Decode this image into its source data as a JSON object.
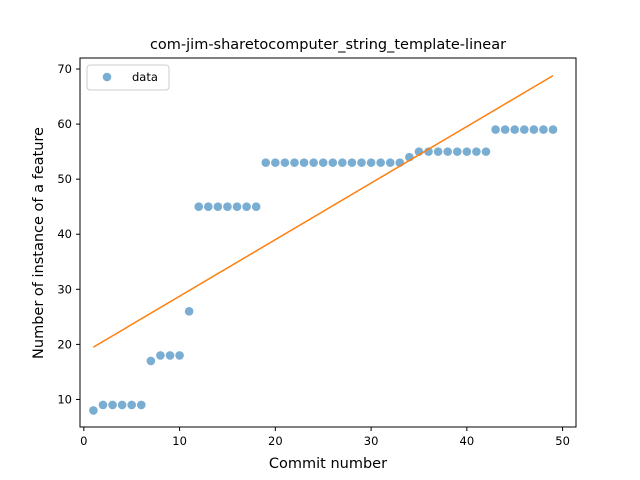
{
  "chart_data": {
    "type": "scatter",
    "title": "com-jim-sharetocomputer_string_template-linear",
    "xlabel": "Commit number",
    "ylabel": "Number of instance of a feature",
    "xlim": [
      -0.4,
      51.4
    ],
    "ylim": [
      5.0,
      72.0
    ],
    "xticks": [
      "0",
      "10",
      "20",
      "30",
      "40",
      "50"
    ],
    "yticks": [
      "10",
      "20",
      "30",
      "40",
      "50",
      "60",
      "70"
    ],
    "grid": false,
    "legend": {
      "placement": "top-left",
      "entries": [
        "data"
      ]
    },
    "colors": {
      "data": "#1f77b4",
      "fit": "#ff7f0e"
    },
    "series": [
      {
        "name": "data",
        "kind": "scatter",
        "x": [
          1,
          2,
          3,
          4,
          5,
          6,
          7,
          8,
          9,
          10,
          11,
          12,
          13,
          14,
          15,
          16,
          17,
          18,
          19,
          20,
          21,
          22,
          23,
          24,
          25,
          26,
          27,
          28,
          29,
          30,
          31,
          32,
          33,
          34,
          35,
          36,
          37,
          38,
          39,
          40,
          41,
          42,
          43,
          44,
          45,
          46,
          47,
          48,
          49
        ],
        "y": [
          8,
          9,
          9,
          9,
          9,
          9,
          17,
          18,
          18,
          18,
          26,
          45,
          45,
          45,
          45,
          45,
          45,
          45,
          53,
          53,
          53,
          53,
          53,
          53,
          53,
          53,
          53,
          53,
          53,
          53,
          53,
          53,
          53,
          54,
          55,
          55,
          55,
          55,
          55,
          55,
          55,
          55,
          59,
          59,
          59,
          59,
          59,
          59,
          59
        ]
      },
      {
        "kind": "line",
        "x": [
          1,
          49
        ],
        "y": [
          19.5,
          68.8
        ]
      }
    ]
  }
}
